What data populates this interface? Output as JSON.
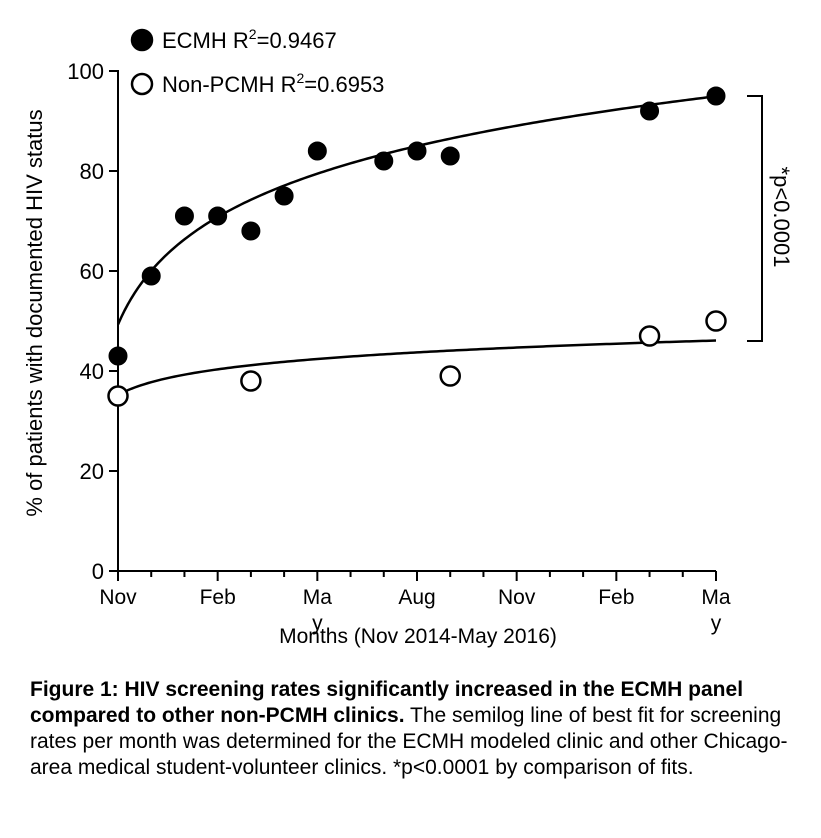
{
  "chart_data": {
    "type": "scatter",
    "xlabel": "Months (Nov 2014-May 2016)",
    "ylabel": "% of patients with documented HIV status",
    "ylim": [
      0,
      100
    ],
    "xlim": [
      0,
      18
    ],
    "yticks": [
      0,
      20,
      40,
      60,
      80,
      100
    ],
    "xticks": [
      {
        "pos": 0,
        "label": "Nov"
      },
      {
        "pos": 3,
        "label": "Feb"
      },
      {
        "pos": 6,
        "label": "Ma\ny"
      },
      {
        "pos": 9,
        "label": "Aug"
      },
      {
        "pos": 12,
        "label": "Nov"
      },
      {
        "pos": 15,
        "label": "Feb"
      },
      {
        "pos": 18,
        "label": "Ma\ny"
      }
    ],
    "legend_position": "top-left",
    "series": [
      {
        "name": "ECMH",
        "r2_label": "R",
        "r2_sup": "2",
        "r2_value": "=0.9467",
        "marker": "filled-circle",
        "x": [
          0,
          1,
          2,
          3,
          4,
          5,
          6,
          8,
          9,
          10,
          16,
          18
        ],
        "y": [
          43,
          59,
          71,
          71,
          68,
          75,
          84,
          82,
          84,
          83,
          92,
          95
        ],
        "fit": {
          "type": "semilog",
          "a": 49.3,
          "b": 15.5
        }
      },
      {
        "name": "Non-PCMH",
        "r2_label": "R",
        "r2_sup": "2",
        "r2_value": "=0.6953",
        "marker": "open-circle",
        "x": [
          0,
          4,
          10,
          16,
          18
        ],
        "y": [
          35,
          38,
          39,
          47,
          50
        ],
        "fit": {
          "type": "semilog",
          "a": 35.2,
          "b": 3.7
        }
      }
    ],
    "annotation": "*p<0.0001",
    "significance_bracket": {
      "y_top": 95,
      "y_bottom": 46
    }
  },
  "caption": {
    "bold": "Figure 1: HIV screening rates significantly increased in the ECMH panel compared to other non-PCMH clinics.",
    "rest": " The semilog line of best fit for screening rates per month was determined for the ECMH modeled clinic and other Chicago-area medical student-volunteer clinics. *p<0.0001 by comparison of fits."
  }
}
